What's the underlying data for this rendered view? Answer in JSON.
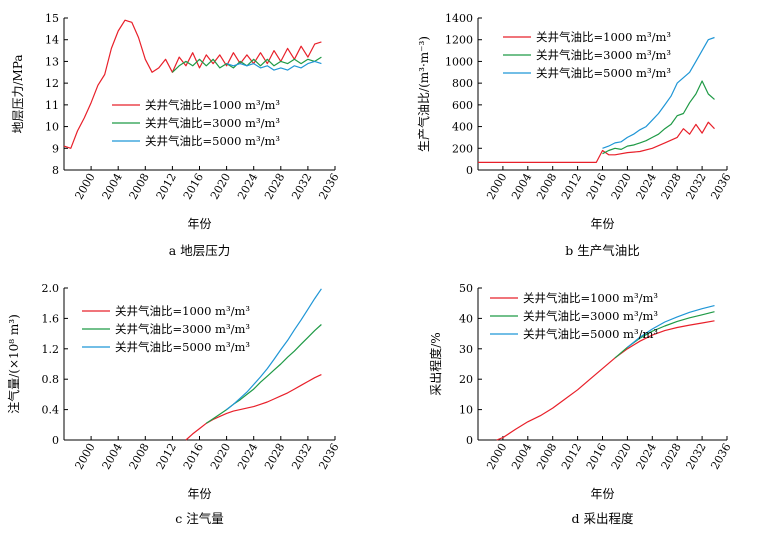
{
  "legend_labels": [
    "关井气油比=1000 m³/m³",
    "关井气油比=3000 m³/m³",
    "关井气油比=5000 m³/m³"
  ],
  "series_colors": [
    "#e8202a",
    "#1f9a46",
    "#1f96d6"
  ],
  "chart_data": [
    {
      "id": "a",
      "type": "line",
      "caption": "a 地层压力",
      "xlabel": "年份",
      "ylabel": "地层压力/MPa",
      "xlim": [
        1996,
        2036
      ],
      "ylim": [
        8,
        15
      ],
      "xticks": [
        2000,
        2004,
        2008,
        2012,
        2016,
        2020,
        2024,
        2028,
        2032,
        2036
      ],
      "yticks": [
        8,
        9,
        10,
        11,
        12,
        13,
        14,
        15
      ],
      "series": [
        {
          "name": "关井气油比=1000 m³/m³",
          "x": [
            1996,
            1997,
            1998,
            1999,
            2000,
            2001,
            2002,
            2003,
            2004,
            2005,
            2006,
            2007,
            2008,
            2009,
            2010,
            2011,
            2012,
            2013,
            2014,
            2015,
            2016,
            2017,
            2018,
            2019,
            2020,
            2021,
            2022,
            2023,
            2024,
            2025,
            2026,
            2027,
            2028,
            2029,
            2030,
            2031,
            2032,
            2033,
            2034
          ],
          "y": [
            9.1,
            9.0,
            9.8,
            10.4,
            11.1,
            11.9,
            12.4,
            13.6,
            14.4,
            14.9,
            14.8,
            14.1,
            13.1,
            12.5,
            12.7,
            13.1,
            12.5,
            13.2,
            12.8,
            13.4,
            12.7,
            13.3,
            12.9,
            13.3,
            12.8,
            13.4,
            12.9,
            13.3,
            12.9,
            13.4,
            12.9,
            13.5,
            13.0,
            13.6,
            13.1,
            13.7,
            13.2,
            13.8,
            13.9
          ]
        },
        {
          "name": "关井气油比=3000 m³/m³",
          "x": [
            2012,
            2013,
            2014,
            2015,
            2016,
            2017,
            2018,
            2019,
            2020,
            2021,
            2022,
            2023,
            2024,
            2025,
            2026,
            2027,
            2028,
            2029,
            2030,
            2031,
            2032,
            2033,
            2034
          ],
          "y": [
            12.5,
            12.8,
            13.0,
            12.8,
            13.1,
            12.8,
            13.1,
            12.7,
            12.9,
            12.7,
            13.0,
            12.8,
            13.1,
            12.8,
            13.1,
            12.8,
            13.0,
            12.9,
            13.1,
            12.9,
            13.1,
            13.0,
            13.2
          ]
        },
        {
          "name": "关井气油比=5000 m³/m³",
          "x": [
            2020,
            2021,
            2022,
            2023,
            2024,
            2025,
            2026,
            2027,
            2028,
            2029,
            2030,
            2031,
            2032,
            2033,
            2034
          ],
          "y": [
            12.9,
            12.8,
            12.9,
            12.8,
            12.9,
            12.7,
            12.8,
            12.6,
            12.7,
            12.6,
            12.8,
            12.7,
            12.9,
            13.0,
            12.9
          ]
        }
      ]
    },
    {
      "id": "b",
      "type": "line",
      "caption": "b 生产气油比",
      "xlabel": "年份",
      "ylabel": "生产气油比/(m³·m⁻³)",
      "xlim": [
        1996,
        2036
      ],
      "ylim": [
        0,
        1400
      ],
      "xticks": [
        2000,
        2004,
        2008,
        2012,
        2016,
        2020,
        2024,
        2028,
        2032,
        2036
      ],
      "yticks": [
        0,
        200,
        400,
        600,
        800,
        1000,
        1200,
        1400
      ],
      "series": [
        {
          "name": "关井气油比=1000 m³/m³",
          "x": [
            1996,
            2000,
            2004,
            2008,
            2012,
            2015,
            2016,
            2017,
            2018,
            2020,
            2022,
            2024,
            2026,
            2028,
            2029,
            2030,
            2031,
            2032,
            2033,
            2034
          ],
          "y": [
            70,
            70,
            70,
            70,
            70,
            70,
            180,
            140,
            140,
            160,
            170,
            200,
            250,
            300,
            380,
            330,
            420,
            340,
            440,
            380
          ]
        },
        {
          "name": "关井气油比=3000 m³/m³",
          "x": [
            2016,
            2017,
            2018,
            2019,
            2020,
            2021,
            2022,
            2023,
            2024,
            2025,
            2026,
            2027,
            2028,
            2029,
            2030,
            2031,
            2032,
            2033,
            2034
          ],
          "y": [
            150,
            180,
            200,
            190,
            220,
            230,
            250,
            270,
            300,
            330,
            380,
            420,
            500,
            520,
            620,
            700,
            820,
            700,
            650
          ]
        },
        {
          "name": "关井气油比=5000 m³/m³",
          "x": [
            2016,
            2017,
            2018,
            2019,
            2020,
            2021,
            2022,
            2023,
            2024,
            2025,
            2026,
            2027,
            2028,
            2029,
            2030,
            2031,
            2032,
            2033,
            2034
          ],
          "y": [
            200,
            220,
            250,
            260,
            300,
            330,
            370,
            400,
            460,
            520,
            600,
            680,
            800,
            850,
            900,
            1000,
            1100,
            1200,
            1220
          ]
        }
      ]
    },
    {
      "id": "c",
      "type": "line",
      "caption": "c 注气量",
      "xlabel": "年份",
      "ylabel": "注气量/(×10⁸ m³)",
      "xlim": [
        1996,
        2036
      ],
      "ylim": [
        0,
        2.0
      ],
      "xticks": [
        2000,
        2004,
        2008,
        2012,
        2016,
        2020,
        2024,
        2028,
        2032,
        2036
      ],
      "yticks": [
        0,
        0.4,
        0.8,
        1.2,
        1.6,
        2.0
      ],
      "ytick_labels": [
        "0",
        "0.4",
        "0.8",
        "1.2",
        "1.6",
        "2.0"
      ],
      "series": [
        {
          "name": "关井气油比=1000 m³/m³",
          "x": [
            2014,
            2015,
            2016,
            2017,
            2018,
            2019,
            2020,
            2021,
            2022,
            2023,
            2024,
            2025,
            2026,
            2027,
            2028,
            2029,
            2030,
            2031,
            2032,
            2033,
            2034
          ],
          "y": [
            0,
            0.08,
            0.15,
            0.22,
            0.27,
            0.31,
            0.35,
            0.38,
            0.4,
            0.42,
            0.44,
            0.47,
            0.5,
            0.54,
            0.58,
            0.62,
            0.67,
            0.72,
            0.77,
            0.82,
            0.86
          ]
        },
        {
          "name": "关井气油比=3000 m³/m³",
          "x": [
            2017,
            2018,
            2019,
            2020,
            2021,
            2022,
            2023,
            2024,
            2025,
            2026,
            2027,
            2028,
            2029,
            2030,
            2031,
            2032,
            2033,
            2034
          ],
          "y": [
            0.22,
            0.28,
            0.34,
            0.4,
            0.47,
            0.53,
            0.6,
            0.67,
            0.76,
            0.84,
            0.92,
            1.0,
            1.09,
            1.17,
            1.26,
            1.35,
            1.44,
            1.52
          ]
        },
        {
          "name": "关井气油比=5000 m³/m³",
          "x": [
            2020,
            2021,
            2022,
            2023,
            2024,
            2025,
            2026,
            2027,
            2028,
            2029,
            2030,
            2031,
            2032,
            2033,
            2034
          ],
          "y": [
            0.4,
            0.47,
            0.55,
            0.63,
            0.73,
            0.83,
            0.94,
            1.06,
            1.19,
            1.31,
            1.45,
            1.58,
            1.72,
            1.86,
            1.99
          ]
        }
      ]
    },
    {
      "id": "d",
      "type": "line",
      "caption": "d 采出程度",
      "xlabel": "年份",
      "ylabel": "采出程度/%",
      "xlim": [
        1996,
        2036
      ],
      "ylim": [
        0,
        50
      ],
      "xticks": [
        2000,
        2004,
        2008,
        2012,
        2016,
        2020,
        2024,
        2028,
        2032,
        2036
      ],
      "yticks": [
        0,
        10,
        20,
        30,
        40,
        50
      ],
      "series": [
        {
          "name": "关井气油比=1000 m³/m³",
          "x": [
            1999,
            2000,
            2002,
            2004,
            2006,
            2008,
            2010,
            2012,
            2014,
            2016,
            2018,
            2020,
            2022,
            2024,
            2026,
            2028,
            2030,
            2032,
            2034
          ],
          "y": [
            0,
            0.8,
            3.5,
            6.0,
            8.0,
            10.5,
            13.5,
            16.5,
            20.0,
            23.5,
            27.0,
            30.0,
            32.5,
            34.5,
            36.0,
            37.0,
            37.8,
            38.5,
            39.2
          ]
        },
        {
          "name": "关井气油比=3000 m³/m³",
          "x": [
            2018,
            2020,
            2022,
            2024,
            2026,
            2028,
            2030,
            2032,
            2034
          ],
          "y": [
            27.0,
            30.5,
            33.5,
            35.8,
            37.5,
            39.0,
            40.2,
            41.2,
            42.2
          ]
        },
        {
          "name": "关井气油比=5000 m³/m³",
          "x": [
            2020,
            2022,
            2024,
            2026,
            2028,
            2030,
            2032,
            2034
          ],
          "y": [
            30.5,
            33.8,
            36.5,
            38.8,
            40.5,
            42.0,
            43.2,
            44.2
          ]
        }
      ]
    }
  ]
}
